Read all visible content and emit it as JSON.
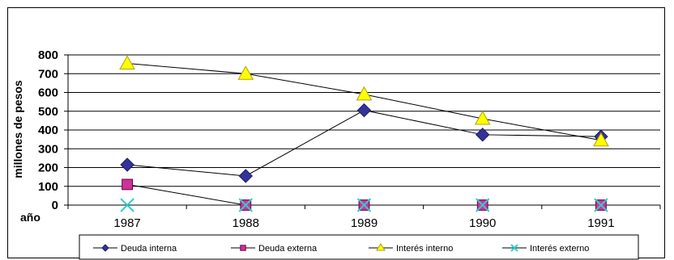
{
  "chart_data": {
    "type": "line",
    "title": "",
    "xlabel": "año",
    "ylabel": "millones de pesos",
    "categories": [
      "1987",
      "1988",
      "1989",
      "1990",
      "1991"
    ],
    "ylim": [
      0,
      800
    ],
    "yticks": [
      0,
      100,
      200,
      300,
      400,
      500,
      600,
      700,
      800
    ],
    "grid": true,
    "legend_position": "bottom",
    "series": [
      {
        "name": "Deuda interna",
        "values": [
          215,
          155,
          505,
          375,
          365
        ],
        "color": "#333399",
        "marker": "diamond"
      },
      {
        "name": "Deuda externa",
        "values": [
          110,
          0,
          0,
          0,
          0
        ],
        "color": "#cc3399",
        "marker": "square"
      },
      {
        "name": "Interés interno",
        "values": [
          755,
          700,
          590,
          460,
          345
        ],
        "color": "#ffff00",
        "marker": "triangle"
      },
      {
        "name": "Interés externo",
        "values": [
          0,
          0,
          0,
          0,
          0
        ],
        "color": "#33cccc",
        "marker": "x"
      }
    ]
  }
}
